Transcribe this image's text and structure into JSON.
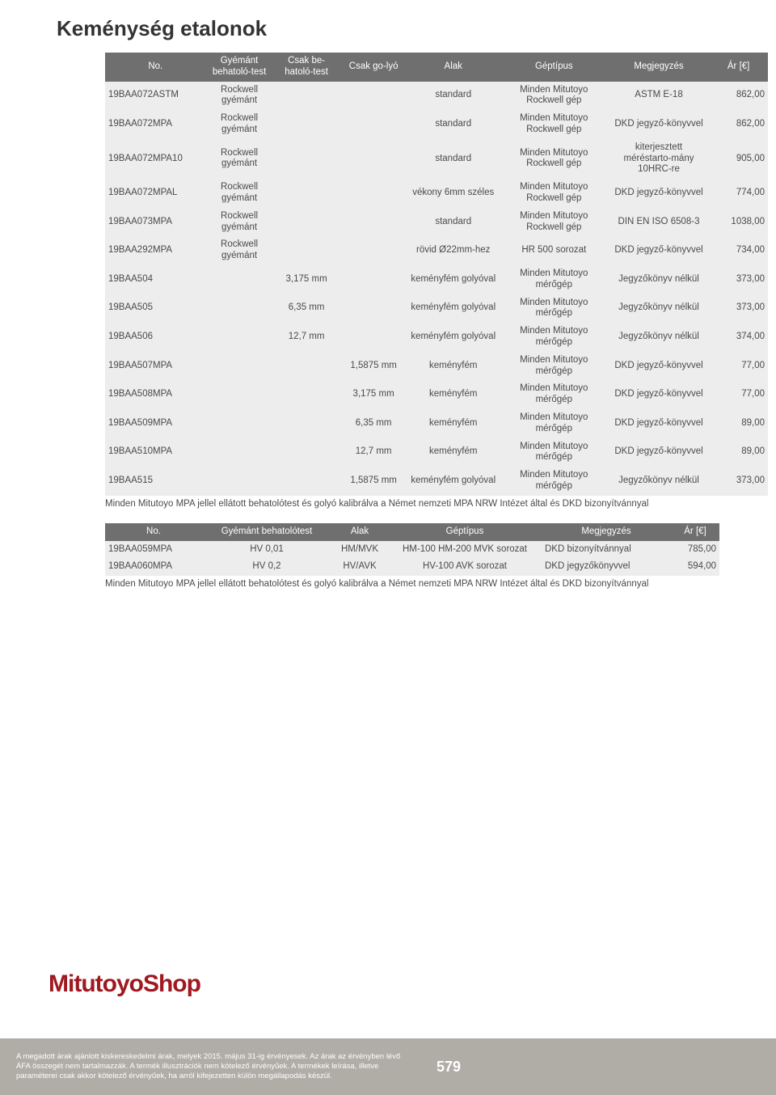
{
  "title": "Keménység etalonok",
  "table1": {
    "headers": [
      "No.",
      "Gyémánt behatoló-test",
      "Csak be-hatoló-test",
      "Csak go-lyó",
      "Alak",
      "Géptípus",
      "Megjegyzés",
      "Ár [€]"
    ],
    "rows": [
      {
        "no": "19BAA072ASTM",
        "c2": "Rockwell gyémánt",
        "c3": "",
        "c4": "",
        "c5": "standard",
        "c6": "Minden Mitutoyo Rockwell gép",
        "c7": "ASTM E-18",
        "c8": "862,00"
      },
      {
        "no": "19BAA072MPA",
        "c2": "Rockwell gyémánt",
        "c3": "",
        "c4": "",
        "c5": "standard",
        "c6": "Minden Mitutoyo Rockwell gép",
        "c7": "DKD jegyző-könyvvel",
        "c8": "862,00"
      },
      {
        "no": "19BAA072MPA10",
        "c2": "Rockwell gyémánt",
        "c3": "",
        "c4": "",
        "c5": "standard",
        "c6": "Minden Mitutoyo Rockwell gép",
        "c7": "kiterjesztett méréstarto-mány 10HRC-re",
        "c8": "905,00"
      },
      {
        "no": "19BAA072MPAL",
        "c2": "Rockwell gyémánt",
        "c3": "",
        "c4": "",
        "c5": "vékony 6mm széles",
        "c6": "Minden Mitutoyo Rockwell gép",
        "c7": "DKD jegyző-könyvvel",
        "c8": "774,00"
      },
      {
        "no": "19BAA073MPA",
        "c2": "Rockwell gyémánt",
        "c3": "",
        "c4": "",
        "c5": "standard",
        "c6": "Minden Mitutoyo Rockwell gép",
        "c7": "DIN EN ISO 6508-3",
        "c8": "1038,00"
      },
      {
        "no": "19BAA292MPA",
        "c2": "Rockwell gyémánt",
        "c3": "",
        "c4": "",
        "c5": "rövid Ø22mm-hez",
        "c6": "HR 500 sorozat",
        "c7": "DKD jegyző-könyvvel",
        "c8": "734,00"
      },
      {
        "no": "19BAA504",
        "c2": "",
        "c3": "3,175 mm",
        "c4": "",
        "c5": "keményfém golyóval",
        "c6": "Minden Mitutoyo mérőgép",
        "c7": "Jegyzőkönyv nélkül",
        "c8": "373,00"
      },
      {
        "no": "19BAA505",
        "c2": "",
        "c3": "6,35 mm",
        "c4": "",
        "c5": "keményfém golyóval",
        "c6": "Minden Mitutoyo mérőgép",
        "c7": "Jegyzőkönyv nélkül",
        "c8": "373,00"
      },
      {
        "no": "19BAA506",
        "c2": "",
        "c3": "12,7 mm",
        "c4": "",
        "c5": "keményfém golyóval",
        "c6": "Minden Mitutoyo mérőgép",
        "c7": "Jegyzőkönyv nélkül",
        "c8": "374,00"
      },
      {
        "no": "19BAA507MPA",
        "c2": "",
        "c3": "",
        "c4": "1,5875 mm",
        "c5": "keményfém",
        "c6": "Minden Mitutoyo mérőgép",
        "c7": "DKD jegyző-könyvvel",
        "c8": "77,00"
      },
      {
        "no": "19BAA508MPA",
        "c2": "",
        "c3": "",
        "c4": "3,175 mm",
        "c5": "keményfém",
        "c6": "Minden Mitutoyo mérőgép",
        "c7": "DKD jegyző-könyvvel",
        "c8": "77,00"
      },
      {
        "no": "19BAA509MPA",
        "c2": "",
        "c3": "",
        "c4": "6,35 mm",
        "c5": "keményfém",
        "c6": "Minden Mitutoyo mérőgép",
        "c7": "DKD jegyző-könyvvel",
        "c8": "89,00"
      },
      {
        "no": "19BAA510MPA",
        "c2": "",
        "c3": "",
        "c4": "12,7 mm",
        "c5": "keményfém",
        "c6": "Minden Mitutoyo mérőgép",
        "c7": "DKD jegyző-könyvvel",
        "c8": "89,00"
      },
      {
        "no": "19BAA515",
        "c2": "",
        "c3": "",
        "c4": "1,5875 mm",
        "c5": "keményfém golyóval",
        "c6": "Minden Mitutoyo mérőgép",
        "c7": "Jegyzőkönyv nélkül",
        "c8": "373,00"
      }
    ],
    "footnote": "Minden Mitutoyo MPA jellel ellátott behatolótest és golyó kalibrálva a Német nemzeti MPA NRW Intézet által és DKD bizonyítvánnyal"
  },
  "table2": {
    "headers": [
      "No.",
      "Gyémánt behatolótest",
      "Alak",
      "Géptípus",
      "Megjegyzés",
      "Ár [€]"
    ],
    "rows": [
      {
        "no": "19BAA059MPA",
        "c2": "HV 0,01",
        "c3": "HM/MVK",
        "c4": "HM-100 HM-200 MVK sorozat",
        "c5": "DKD bizonyítvánnyal",
        "c6": "785,00"
      },
      {
        "no": "19BAA060MPA",
        "c2": "HV 0,2",
        "c3": "HV/AVK",
        "c4": "HV-100 AVK sorozat",
        "c5": "DKD jegyzőkönyvvel",
        "c6": "594,00"
      }
    ],
    "footnote": "Minden Mitutoyo MPA jellel ellátott behatolótest és golyó kalibrálva a Német nemzeti MPA NRW Intézet által és DKD bizonyítvánnyal"
  },
  "brand_shop": "MitutoyoShop",
  "brand": "Mitutoyo",
  "page_number": "579",
  "disclaimer": "A megadott árak ajánlott kiskereskedelmi árak, melyek 2015. május 31-ig érvényesek. Az árak az érvényben lévő ÁFA összegét nem tartalmazzák. A termék illusztrációk nem kötelező érvényűek. A termékek leírása, illetve paraméterei csak akkor kötelező érvényűek, ha arról kifejezetten külön megállapodás készül.",
  "colors": {
    "header_bg": "#706f6f",
    "row_bg": "#ededed",
    "accent": "#a01820",
    "bottom_bar": "#b0aca6"
  }
}
